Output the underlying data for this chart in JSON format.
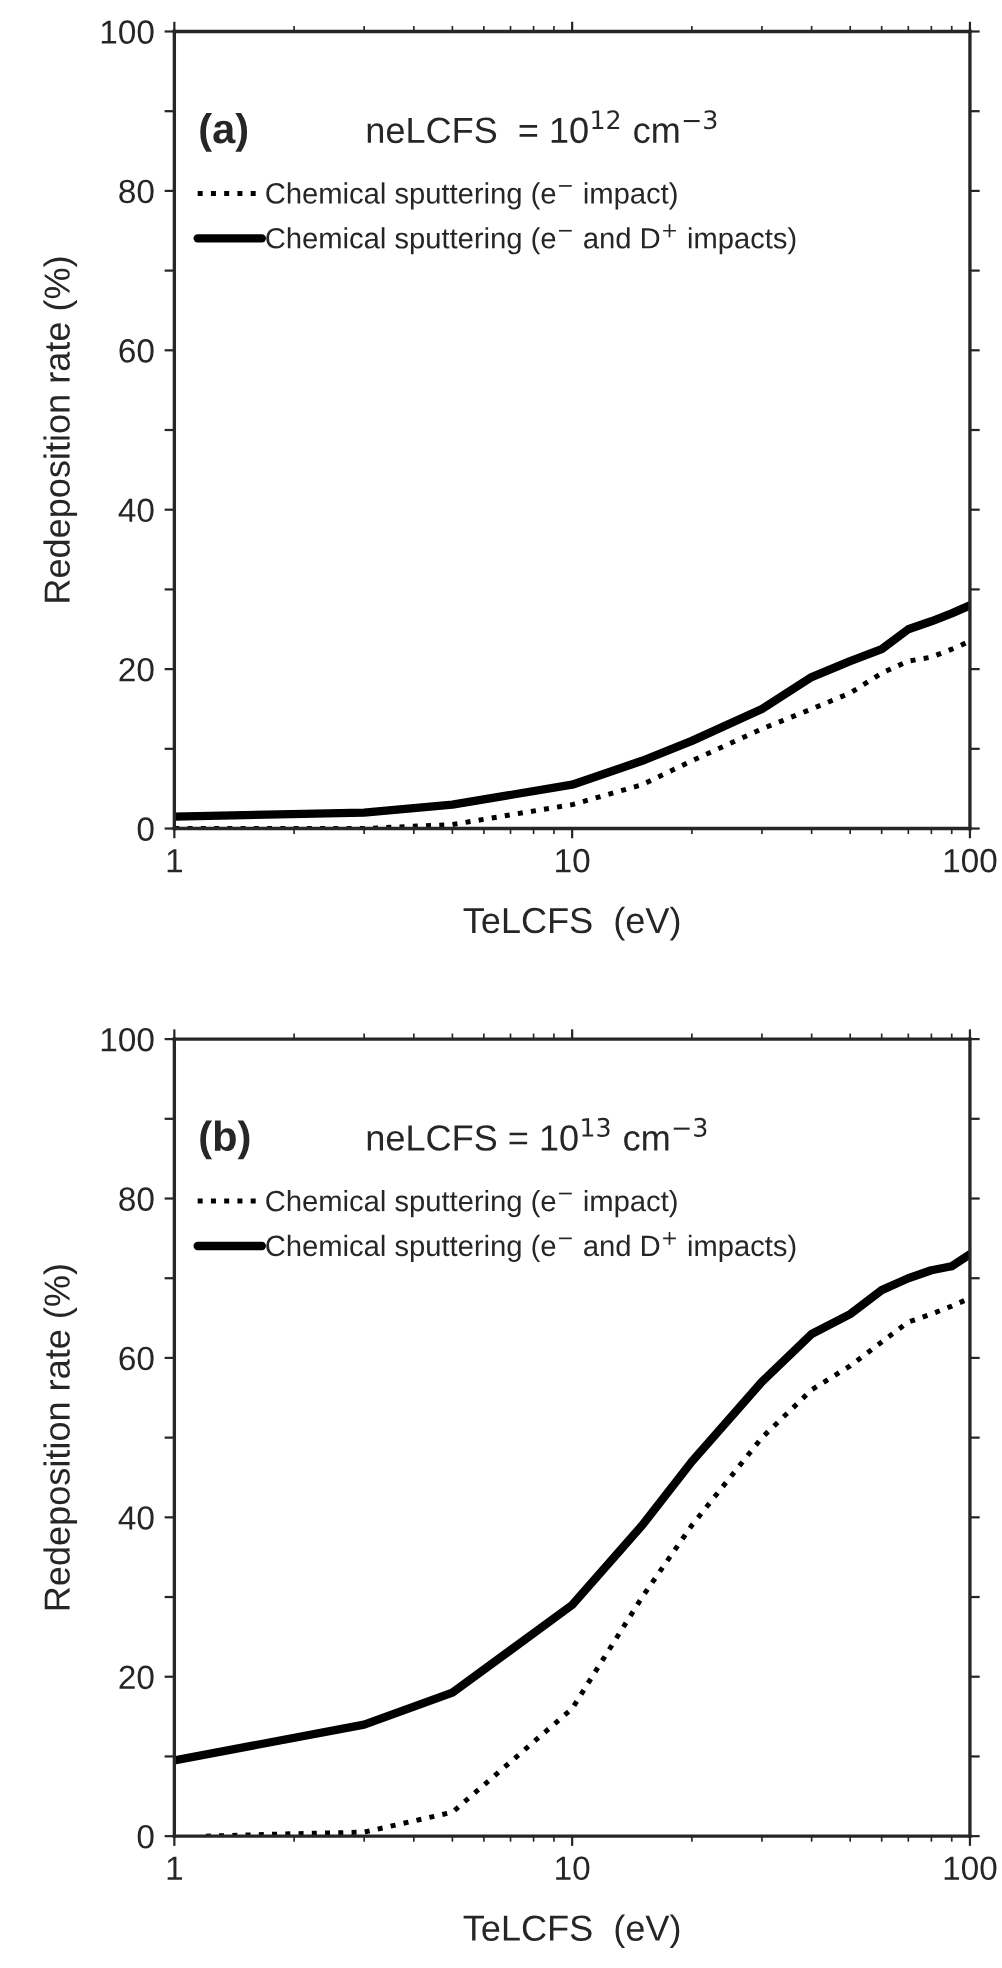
{
  "chart_data": [
    {
      "type": "line",
      "xlabel": "TeLCFS  (eV)",
      "ylabel": "Redeposition rate (%)",
      "log": "x",
      "xlim": [
        1,
        100
      ],
      "xticks": [
        1,
        10,
        100
      ],
      "ylim": [
        0,
        100
      ],
      "yticks": [
        0,
        {
          "value": 10,
          "label": null
        },
        20,
        {
          "value": 30,
          "label": null
        },
        40,
        {
          "value": 50,
          "label": null
        },
        60,
        {
          "value": 70,
          "label": null
        },
        80,
        {
          "value": 90,
          "label": null
        },
        100
      ],
      "grid": false,
      "legend": "top left",
      "annotations": [
        "(a)",
        "neLCFS  = 10$^{12}$ cm$^{−3}$"
      ],
      "series": [
        {
          "name": "Chemical sputtering (e$^{−}$ impact)",
          "color": "#000000",
          "line_style": "dotted",
          "x": [
            1,
            3,
            5,
            10,
            15,
            20,
            30,
            40,
            50,
            60,
            70,
            80,
            90,
            100
          ],
          "values": [
            0,
            0,
            0.5,
            3,
            5.5,
            8.5,
            12.5,
            15,
            17,
            19.5,
            21,
            21.5,
            22.5,
            23.5
          ]
        },
        {
          "name": "Chemical sputtering (e$^{−}$ and D$^{+}$ impacts)",
          "color": "#000000",
          "line_style": "solid",
          "x": [
            1,
            3,
            5,
            10,
            15,
            20,
            30,
            40,
            50,
            60,
            70,
            80,
            90,
            100
          ],
          "values": [
            1.5,
            2,
            3,
            5.5,
            8.5,
            11,
            15,
            19,
            21,
            22.5,
            25,
            26,
            27,
            28
          ]
        }
      ]
    },
    {
      "type": "line",
      "xlabel": "TeLCFS  (eV)",
      "ylabel": "Redeposition rate (%)",
      "log": "x",
      "xlim": [
        1,
        100
      ],
      "xticks": [
        1,
        10,
        100
      ],
      "ylim": [
        0,
        100
      ],
      "yticks": [
        0,
        {
          "value": 10,
          "label": null
        },
        20,
        {
          "value": 30,
          "label": null
        },
        40,
        {
          "value": 50,
          "label": null
        },
        60,
        {
          "value": 70,
          "label": null
        },
        80,
        {
          "value": 90,
          "label": null
        },
        100
      ],
      "grid": false,
      "legend": "top left",
      "annotations": [
        "(b)",
        "neLCFS = 10$^{13}$ cm$^{−3}$"
      ],
      "series": [
        {
          "name": "Chemical sputtering (e$^{−}$ impact)",
          "color": "#000000",
          "line_style": "dotted",
          "x": [
            1.2,
            2,
            3,
            5,
            10,
            15,
            20,
            30,
            40,
            50,
            60,
            70,
            80,
            90,
            100
          ],
          "values": [
            0,
            0.3,
            0.5,
            3,
            16,
            30,
            39,
            50,
            56,
            59,
            62,
            64.5,
            65.5,
            66.5,
            67.5
          ]
        },
        {
          "name": "Chemical sputtering (e$^{−}$ and D$^{+}$ impacts)",
          "color": "#000000",
          "line_style": "solid",
          "x": [
            1,
            3,
            5,
            10,
            15,
            20,
            30,
            40,
            50,
            60,
            70,
            80,
            90,
            100
          ],
          "values": [
            9.5,
            14,
            18,
            29,
            39,
            47,
            57,
            63,
            65.5,
            68.5,
            70,
            71,
            71.5,
            73
          ]
        }
      ]
    }
  ]
}
